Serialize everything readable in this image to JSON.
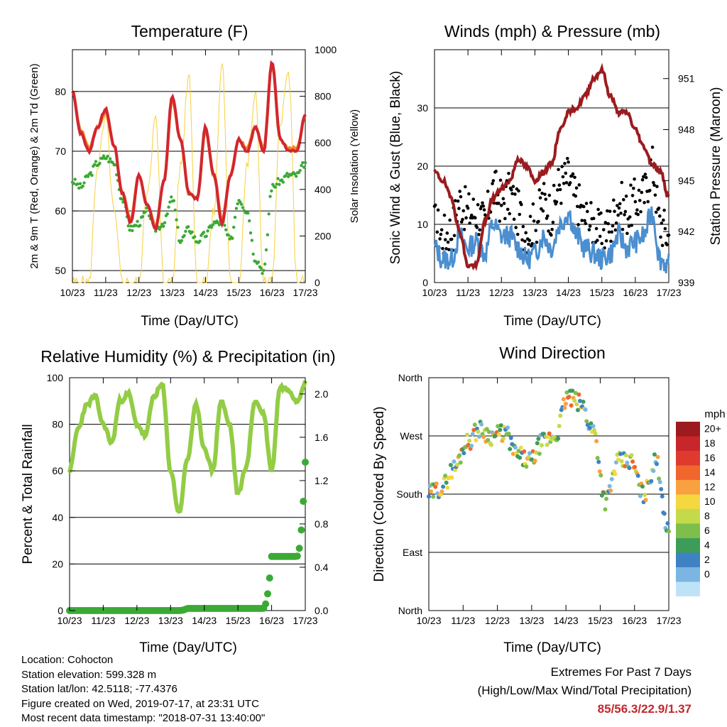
{
  "panels": {
    "temperature": {
      "title": "Temperature (F)",
      "ylabel_left": "2m & 9m T (Red, Orange) & 2m Td (Green)",
      "ylabel_right": "Solar Insolation (Yellow)",
      "xlabel": "Time (Day/UTC)",
      "left_ticks": [
        "50",
        "60",
        "70",
        "80"
      ],
      "right_ticks": [
        "0",
        "200",
        "400",
        "600",
        "800",
        "1000"
      ]
    },
    "winds": {
      "title": "Winds (mph) & Pressure (mb)",
      "ylabel_left": "Sonic Wind & Gust (Blue, Black)",
      "ylabel_right": "Station Pressure (Maroon)",
      "xlabel": "Time (Day/UTC)",
      "left_ticks": [
        "0",
        "10",
        "20",
        "30"
      ],
      "right_ticks": [
        "939",
        "942",
        "945",
        "948",
        "951"
      ]
    },
    "humidity": {
      "title": "Relative Humidity (%) & Precipitation (in)",
      "ylabel_left": "Percent & Total Rainfall",
      "xlabel": "Time (Day/UTC)",
      "left_ticks": [
        "0",
        "20",
        "40",
        "60",
        "80",
        "100"
      ],
      "right_ticks": [
        "0.0",
        "0.4",
        "0.8",
        "1.2",
        "1.6",
        "2.0"
      ]
    },
    "direction": {
      "title": "Wind Direction",
      "ylabel_left": "Direction (Colored By Speed)",
      "xlabel": "Time (Day/UTC)",
      "left_ticks": [
        "North",
        "East",
        "South",
        "West",
        "North"
      ],
      "legend_title": "mph",
      "legend_labels": [
        "20+",
        "18",
        "16",
        "14",
        "12",
        "10",
        "8",
        "6",
        "4",
        "2",
        "0"
      ],
      "legend_colors": [
        "#9b1b1e",
        "#c7262b",
        "#e03a2f",
        "#f0662d",
        "#f9a040",
        "#f5d840",
        "#c5da4a",
        "#7dbf4a",
        "#3e9c5a",
        "#3f82c4",
        "#7bb6e2",
        "#bfe3f6"
      ]
    }
  },
  "x_ticks": [
    "10/23",
    "11/23",
    "12/23",
    "13/23",
    "14/23",
    "15/23",
    "16/23",
    "17/23"
  ],
  "info": {
    "location": "Location: Cohocton",
    "elevation": "Station elevation: 599.328 m",
    "latlon": "Station lat/lon: 42.5118; -77.4376",
    "created": "Figure created on Wed, 2019-07-17, at 23:31 UTC",
    "timestamp": "Most recent data timestamp: \"2018-07-31 13:40:00\""
  },
  "extremes": {
    "title": "Extremes For Past 7 Days",
    "subtitle": "(High/Low/Max Wind/Total Precipitation)",
    "values": "85/56.3/22.9/1.37"
  },
  "colors": {
    "temp_2m": "#d22630",
    "temp_9m": "#f08a24",
    "dewpoint": "#3aaa35",
    "insolation": "#f7d03c",
    "wind": "#4b8fd0",
    "gust": "#000000",
    "pressure": "#9b1b1e",
    "rh": "#93cc45",
    "precip": "#3aaa35"
  },
  "chart_data": [
    {
      "type": "line",
      "title": "Temperature (F)",
      "xlabel": "Time (Day/UTC)",
      "ylabel": "2m & 9m T (Red, Orange) & 2m Td (Green)",
      "y2label": "Solar Insolation (Yellow)",
      "x": [
        0,
        0.25,
        0.5,
        0.75,
        1,
        1.25,
        1.5,
        1.75,
        2,
        2.25,
        2.5,
        2.75,
        3,
        3.25,
        3.5,
        3.75,
        4,
        4.25,
        4.5,
        4.75,
        5,
        5.25,
        5.5,
        5.75,
        6,
        6.25,
        6.5,
        6.75,
        7
      ],
      "xticks": [
        "10/23",
        "11/23",
        "12/23",
        "13/23",
        "14/23",
        "15/23",
        "16/23",
        "17/23"
      ],
      "ylim": [
        48,
        87
      ],
      "y2lim": [
        0,
        1000
      ],
      "series": [
        {
          "name": "2m T",
          "axis": "left",
          "values": [
            80,
            73,
            70,
            74,
            77,
            71,
            63,
            58,
            66,
            61,
            57,
            65,
            79,
            72,
            63,
            62,
            74,
            66,
            58,
            66,
            72,
            70,
            74,
            70,
            85,
            72,
            70,
            70,
            76
          ]
        },
        {
          "name": "9m T",
          "axis": "left",
          "values": [
            80,
            73.5,
            70.5,
            74,
            76.5,
            71,
            63,
            58.5,
            66,
            61,
            57.5,
            65,
            78.5,
            72,
            63,
            62,
            73.5,
            66,
            58.5,
            66,
            72,
            70.5,
            74,
            70.5,
            84.5,
            72,
            70.5,
            70.5,
            76
          ]
        },
        {
          "name": "2m Td",
          "axis": "left",
          "values": [
            65,
            64,
            66,
            68,
            69,
            68,
            62,
            57,
            58,
            60,
            57,
            58,
            62,
            55,
            57,
            55,
            56,
            58,
            58,
            55,
            62,
            60,
            52,
            50,
            64,
            65,
            66,
            66,
            68
          ]
        },
        {
          "name": "Solar Insolation",
          "axis": "right",
          "values": [
            0,
            0,
            0,
            500,
            700,
            300,
            0,
            0,
            0,
            400,
            700,
            0,
            0,
            500,
            900,
            0,
            0,
            300,
            950,
            0,
            0,
            500,
            800,
            0,
            0,
            700,
            900,
            0,
            0
          ]
        }
      ]
    },
    {
      "type": "line",
      "title": "Winds (mph) & Pressure (mb)",
      "xlabel": "Time (Day/UTC)",
      "ylabel": "Sonic Wind & Gust (Blue, Black)",
      "y2label": "Station Pressure (Maroon)",
      "x": [
        0,
        0.25,
        0.5,
        0.75,
        1,
        1.25,
        1.5,
        1.75,
        2,
        2.25,
        2.5,
        2.75,
        3,
        3.25,
        3.5,
        3.75,
        4,
        4.25,
        4.5,
        4.75,
        5,
        5.25,
        5.5,
        5.75,
        6,
        6.25,
        6.5,
        6.75,
        7
      ],
      "xticks": [
        "10/23",
        "11/23",
        "12/23",
        "13/23",
        "14/23",
        "15/23",
        "16/23",
        "17/23"
      ],
      "ylim": [
        0,
        40
      ],
      "y2lim": [
        939,
        952.7
      ],
      "series": [
        {
          "name": "Sonic Wind",
          "axis": "left",
          "values": [
            6,
            4,
            4,
            8,
            6,
            7,
            5,
            10,
            8,
            8,
            6,
            4,
            5,
            8,
            6,
            10,
            12,
            8,
            6,
            5,
            4,
            5,
            8,
            6,
            7,
            8,
            12,
            4,
            3
          ]
        },
        {
          "name": "Gust",
          "axis": "left",
          "values": [
            10,
            8,
            9,
            14,
            12,
            12,
            10,
            16,
            14,
            15,
            12,
            9,
            10,
            14,
            12,
            17,
            18,
            14,
            11,
            10,
            8,
            10,
            14,
            12,
            14,
            15,
            20,
            10,
            8
          ]
        },
        {
          "name": "Station Pressure",
          "axis": "right",
          "values": [
            945.5,
            945,
            944,
            942,
            940,
            940,
            942.5,
            944,
            944.5,
            945,
            946.3,
            945.8,
            945,
            945.5,
            946,
            948,
            949,
            949.3,
            950,
            951,
            951.5,
            950,
            949,
            949,
            948,
            947,
            946,
            945.5,
            944
          ]
        }
      ]
    },
    {
      "type": "line",
      "title": "Relative Humidity (%) & Precipitation (in)",
      "xlabel": "Time (Day/UTC)",
      "ylabel": "Percent & Total Rainfall",
      "x": [
        0,
        0.25,
        0.5,
        0.75,
        1,
        1.25,
        1.5,
        1.75,
        2,
        2.25,
        2.5,
        2.75,
        3,
        3.25,
        3.5,
        3.75,
        4,
        4.25,
        4.5,
        4.75,
        5,
        5.25,
        5.5,
        5.75,
        6,
        6.25,
        6.5,
        6.75,
        7
      ],
      "xticks": [
        "10/23",
        "11/23",
        "12/23",
        "13/23",
        "14/23",
        "15/23",
        "16/23",
        "17/23"
      ],
      "ylim": [
        0,
        100
      ],
      "y2lim": [
        0,
        2.15
      ],
      "series": [
        {
          "name": "Relative Humidity",
          "axis": "left",
          "values": [
            60,
            78,
            88,
            92,
            80,
            72,
            90,
            93,
            80,
            75,
            92,
            97,
            60,
            42,
            65,
            88,
            70,
            60,
            90,
            80,
            50,
            62,
            90,
            85,
            60,
            96,
            95,
            90,
            98
          ]
        },
        {
          "name": "Total Precipitation",
          "axis": "right",
          "values": [
            0,
            0,
            0,
            0,
            0,
            0,
            0,
            0,
            0,
            0,
            0,
            0,
            0,
            0,
            0.02,
            0.02,
            0.02,
            0.02,
            0.02,
            0.02,
            0.02,
            0.02,
            0.02,
            0.02,
            0.5,
            0.5,
            0.5,
            0.5,
            1.37
          ]
        }
      ]
    },
    {
      "type": "scatter",
      "title": "Wind Direction",
      "xlabel": "Time (Day/UTC)",
      "ylabel": "Direction (Colored By Speed)",
      "yticks": [
        "North",
        "East",
        "South",
        "West",
        "North"
      ],
      "ylim": [
        0,
        360
      ],
      "legend_title": "mph",
      "x": [
        0,
        0.5,
        1,
        1.25,
        1.5,
        2,
        2.5,
        3,
        3.25,
        3.5,
        4,
        4.25,
        4.5,
        5,
        5.25,
        5.5,
        6,
        6.25,
        6.5,
        7
      ],
      "values": [
        180,
        190,
        220,
        260,
        280,
        270,
        275,
        240,
        230,
        260,
        270,
        330,
        320,
        280,
        170,
        230,
        230,
        180,
        230,
        120
      ]
    }
  ]
}
